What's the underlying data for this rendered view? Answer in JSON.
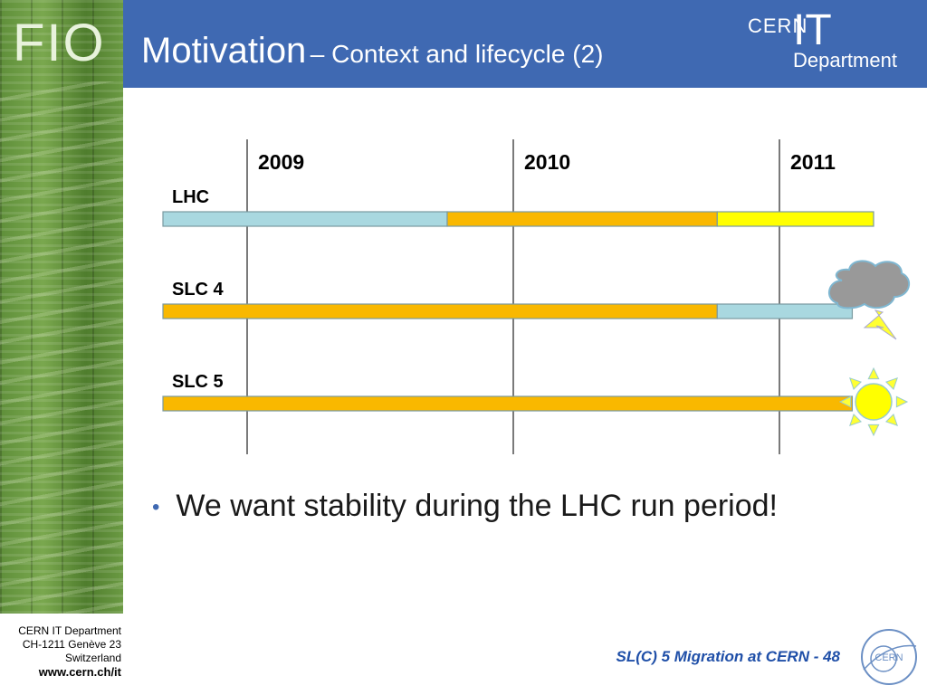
{
  "header": {
    "title_main": "Motivation",
    "title_sub": "– Context and lifecycle (2)",
    "brand_cern": "CERN",
    "brand_it": "IT",
    "brand_department": "Department"
  },
  "sidebar": {
    "logo": "FIO"
  },
  "timeline": {
    "years": [
      "2009",
      "2010",
      "2011"
    ],
    "rows": [
      {
        "label": "LHC",
        "segments": [
          {
            "color": "#a9d8e0",
            "from": 0.0,
            "to": 0.4
          },
          {
            "color": "#f9b800",
            "from": 0.4,
            "to": 0.78
          },
          {
            "color": "#ffff00",
            "from": 0.78,
            "to": 1.0
          }
        ]
      },
      {
        "label": "SLC 4",
        "segments": [
          {
            "color": "#f9b800",
            "from": 0.0,
            "to": 0.78
          },
          {
            "color": "#a9d8e0",
            "from": 0.78,
            "to": 0.97
          }
        ],
        "icon": "storm-cloud-icon"
      },
      {
        "label": "SLC 5",
        "segments": [
          {
            "color": "#f9b800",
            "from": 0.0,
            "to": 0.97
          }
        ],
        "icon": "sun-icon"
      }
    ]
  },
  "bullet": {
    "text": "We want stability during the LHC run period!"
  },
  "footer": {
    "address_line1": "CERN IT Department",
    "address_line2": "CH-1211 Genève 23",
    "address_line3": "Switzerland",
    "website": "www.cern.ch/it",
    "slide_label": "SL(C) 5 Migration at CERN - 48",
    "logo_text": "CERN"
  }
}
